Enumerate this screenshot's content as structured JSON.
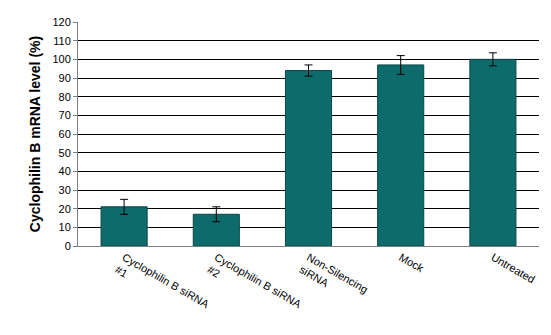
{
  "chart_data": {
    "type": "bar",
    "categories": [
      "Cyclophilin B siRNA #1",
      "Cyclophilin B siRNA #2",
      "Non-Silencing siRNA",
      "Mock",
      "Untreated"
    ],
    "values": [
      21,
      17,
      94,
      97,
      100
    ],
    "errors": [
      4,
      4,
      3,
      5,
      3.5
    ],
    "color": "#0e6b6b",
    "y_label": "Cyclophilin B mRNA level (%)",
    "ylim": [
      0,
      120
    ],
    "yticks": [
      0,
      10,
      20,
      30,
      40,
      50,
      60,
      70,
      80,
      90,
      100,
      110,
      120
    ],
    "grid": true
  }
}
